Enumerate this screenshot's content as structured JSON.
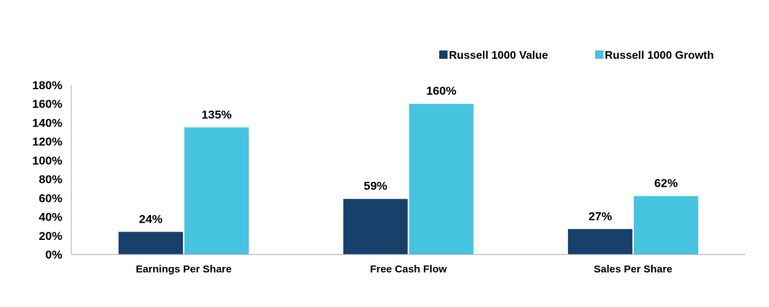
{
  "chart_data": {
    "type": "bar",
    "categories": [
      "Earnings Per Share",
      "Free Cash Flow",
      "Sales Per Share"
    ],
    "series": [
      {
        "name": "Russell 1000 Value",
        "values": [
          24,
          59,
          27
        ],
        "labels": [
          "24%",
          "59%",
          "27%"
        ],
        "color": "#17406b"
      },
      {
        "name": "Russell 1000 Growth",
        "values": [
          135,
          160,
          62
        ],
        "labels": [
          "135%",
          "160%",
          "62%"
        ],
        "color": "#46c3df"
      }
    ],
    "ylim": [
      0,
      180
    ],
    "yticks": [
      0,
      20,
      40,
      60,
      80,
      100,
      120,
      140,
      160,
      180
    ],
    "ytick_labels": [
      "0%",
      "20%",
      "40%",
      "60%",
      "80%",
      "100%",
      "120%",
      "140%",
      "160%",
      "180%"
    ],
    "title": "",
    "xlabel": "",
    "ylabel": "",
    "legend_position": "top-right",
    "grid": false
  }
}
